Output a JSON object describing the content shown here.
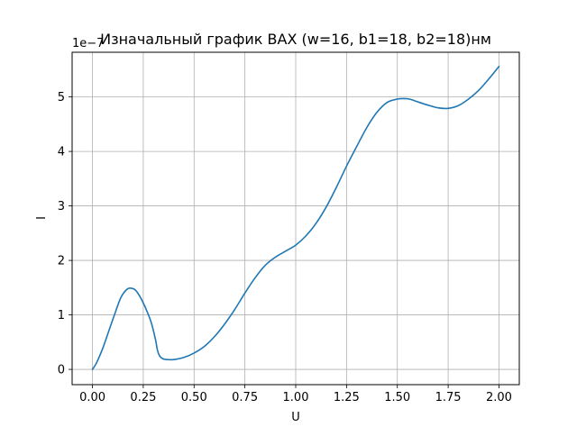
{
  "chart_data": {
    "type": "line",
    "title": "Изначальный график ВАХ (w=16, b1=18, b2=18)нм",
    "xlabel": "U",
    "ylabel": "I",
    "offset_text": "1e−7",
    "xlim": [
      -0.1,
      2.1
    ],
    "ylim": [
      -0.28,
      5.82
    ],
    "xticks": [
      0.0,
      0.25,
      0.5,
      0.75,
      1.0,
      1.25,
      1.5,
      1.75,
      2.0
    ],
    "xtick_labels": [
      "0.00",
      "0.25",
      "0.50",
      "0.75",
      "1.00",
      "1.25",
      "1.50",
      "1.75",
      "2.00"
    ],
    "yticks": [
      0,
      1,
      2,
      3,
      4,
      5
    ],
    "ytick_labels": [
      "0",
      "1",
      "2",
      "3",
      "4",
      "5"
    ],
    "grid": true,
    "series": [
      {
        "color": "#1f77b4",
        "x": [
          0.0,
          0.02,
          0.05,
          0.08,
          0.11,
          0.14,
          0.17,
          0.19,
          0.21,
          0.23,
          0.25,
          0.27,
          0.29,
          0.31,
          0.32,
          0.33,
          0.34,
          0.35,
          0.37,
          0.4,
          0.45,
          0.5,
          0.55,
          0.6,
          0.65,
          0.7,
          0.75,
          0.8,
          0.85,
          0.9,
          0.95,
          1.0,
          1.05,
          1.1,
          1.15,
          1.2,
          1.25,
          1.3,
          1.35,
          1.4,
          1.45,
          1.5,
          1.53,
          1.56,
          1.6,
          1.65,
          1.7,
          1.75,
          1.8,
          1.85,
          1.9,
          1.95,
          2.0
        ],
        "y": [
          0.0,
          0.12,
          0.38,
          0.7,
          1.02,
          1.32,
          1.47,
          1.49,
          1.46,
          1.36,
          1.22,
          1.05,
          0.85,
          0.55,
          0.35,
          0.25,
          0.21,
          0.19,
          0.18,
          0.18,
          0.22,
          0.3,
          0.42,
          0.6,
          0.83,
          1.1,
          1.4,
          1.68,
          1.91,
          2.06,
          2.17,
          2.28,
          2.45,
          2.68,
          2.98,
          3.34,
          3.73,
          4.09,
          4.44,
          4.72,
          4.9,
          4.96,
          4.97,
          4.96,
          4.91,
          4.85,
          4.8,
          4.79,
          4.84,
          4.96,
          5.12,
          5.33,
          5.56
        ]
      }
    ]
  }
}
